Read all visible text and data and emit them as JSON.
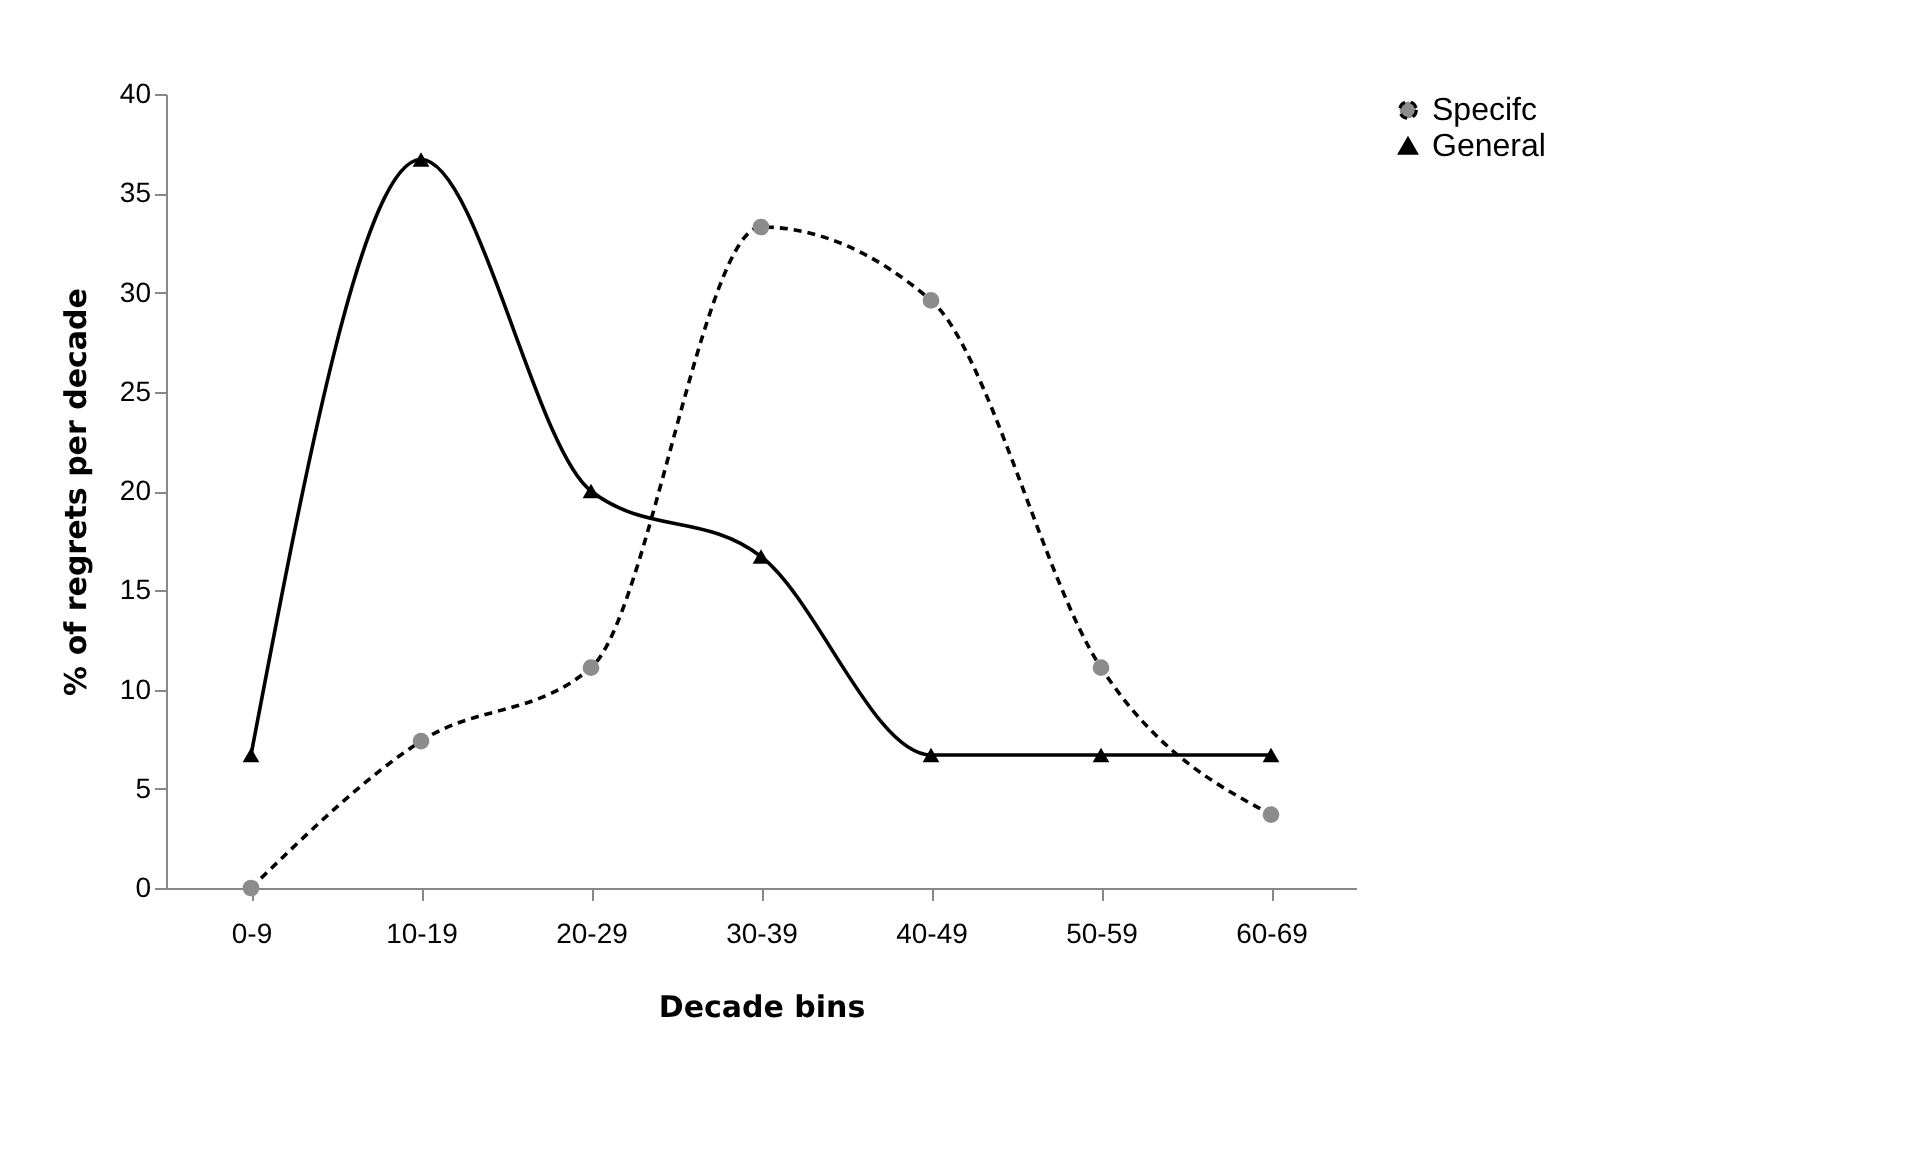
{
  "chart_data": {
    "type": "line",
    "xlabel": "Decade bins",
    "ylabel": "% of regrets per decade",
    "categories": [
      "0-9",
      "10-19",
      "20-29",
      "30-39",
      "40-49",
      "50-59",
      "60-69"
    ],
    "series": [
      {
        "name": "Specifc",
        "color": "#8c8c8c",
        "marker": "circle",
        "line_style": "dashed",
        "values": [
          0,
          7.4,
          11.1,
          33.3,
          29.6,
          11.1,
          3.7
        ]
      },
      {
        "name": "General",
        "color": "#000000",
        "marker": "triangle",
        "line_style": "solid",
        "values": [
          6.7,
          36.7,
          20,
          16.7,
          6.7,
          6.7,
          6.7
        ]
      }
    ],
    "ylim": [
      0,
      40
    ],
    "yticks": [
      0,
      5,
      10,
      15,
      20,
      25,
      30,
      35,
      40
    ],
    "grid": false,
    "legend": "right"
  }
}
